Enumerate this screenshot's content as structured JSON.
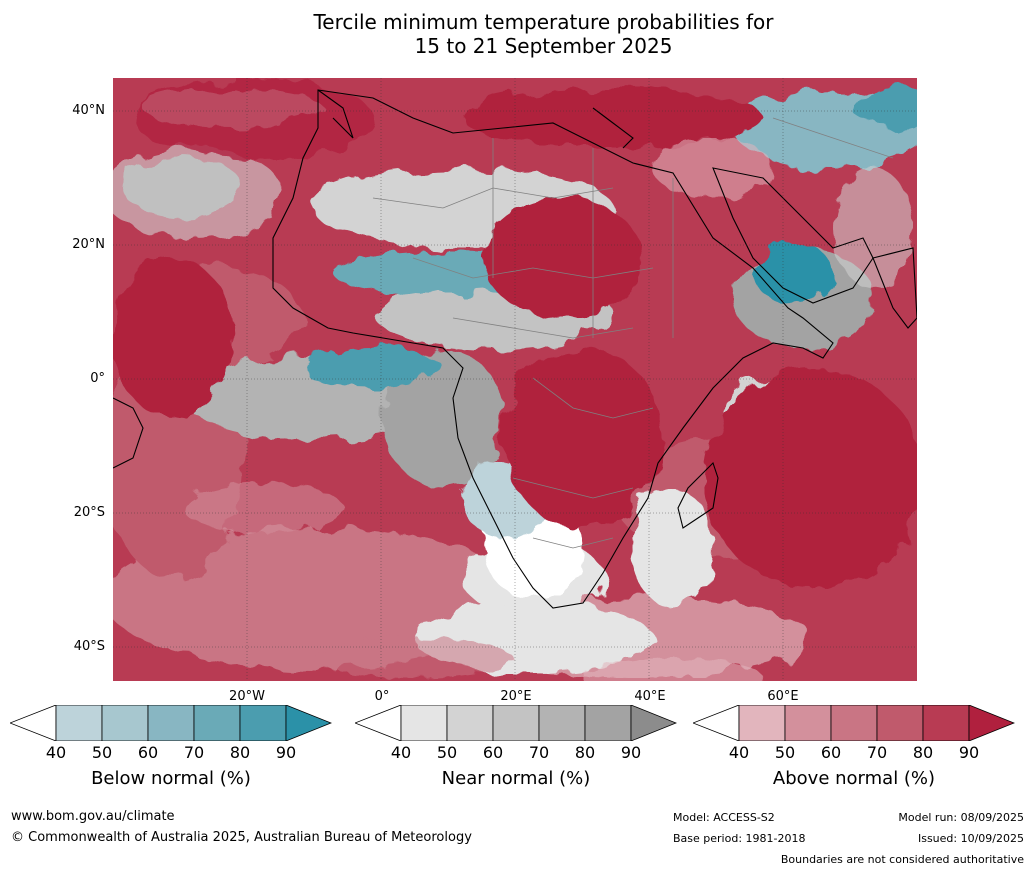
{
  "title": {
    "line1": "Tercile minimum temperature probabilities for",
    "line2": "15 to 21 September 2025"
  },
  "map": {
    "lat_labels": [
      "40°N",
      "20°N",
      "0°",
      "20°S",
      "40°S"
    ],
    "lon_labels": [
      "20°W",
      "0°",
      "20°E",
      "40°E",
      "60°E"
    ],
    "colors": {
      "below": [
        "#bdd3da",
        "#a7c7cf",
        "#88b6c2",
        "#6aaab7",
        "#4b9daf",
        "#2b91a8"
      ],
      "near": [
        "#e5e5e5",
        "#d3d3d3",
        "#c3c3c3",
        "#b3b3b3",
        "#a3a3a3",
        "#8c8c8c"
      ],
      "above": [
        "#e2b5bd",
        "#d3909c",
        "#c97584",
        "#c05a6c",
        "#b83b53",
        "#b0203e"
      ],
      "ocean_base": "#b0203e",
      "coastline": "#000000",
      "borders": "#808080"
    }
  },
  "colorbars": [
    {
      "id": "below",
      "ticks": [
        "40",
        "50",
        "60",
        "70",
        "80",
        "90"
      ],
      "label": "Below normal (%)"
    },
    {
      "id": "near",
      "ticks": [
        "40",
        "50",
        "60",
        "70",
        "80",
        "90"
      ],
      "label": "Near normal (%)"
    },
    {
      "id": "above",
      "ticks": [
        "40",
        "50",
        "60",
        "70",
        "80",
        "90"
      ],
      "label": "Above normal (%)"
    }
  ],
  "footer": {
    "website": "www.bom.gov.au/climate",
    "copyright": "© Commonwealth of Australia 2025, Australian Bureau of Meteorology",
    "model": "Model: ACCESS-S2",
    "base_period": "Base period: 1981-2018",
    "model_run": "Model run: 08/09/2025",
    "issued": "Issued: 10/09/2025",
    "disclaimer": "Boundaries are not considered authoritative"
  }
}
